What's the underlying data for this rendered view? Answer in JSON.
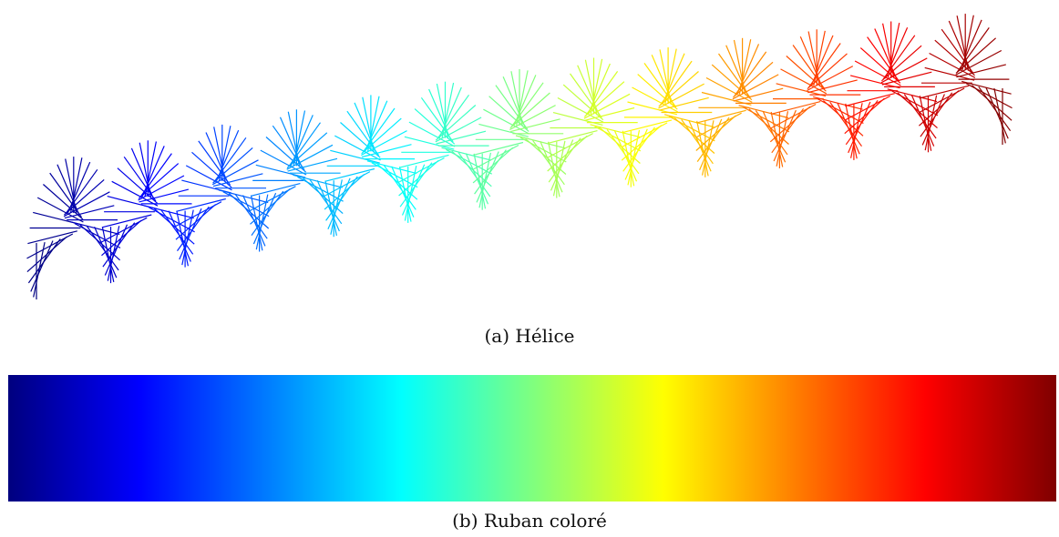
{
  "captions": {
    "helix": "(a) Hélice",
    "ribbon": "(b) Ruban coloré"
  },
  "colormap": {
    "name": "jet",
    "stops": [
      "#00007f",
      "#0000ff",
      "#007fff",
      "#00ffff",
      "#7fff7f",
      "#ffff00",
      "#ff7f00",
      "#ff0000",
      "#7f0000"
    ]
  },
  "helix": {
    "turns": 13,
    "rays_per_turn": 28,
    "stroke_color_mode": "colormap-along-axis"
  }
}
